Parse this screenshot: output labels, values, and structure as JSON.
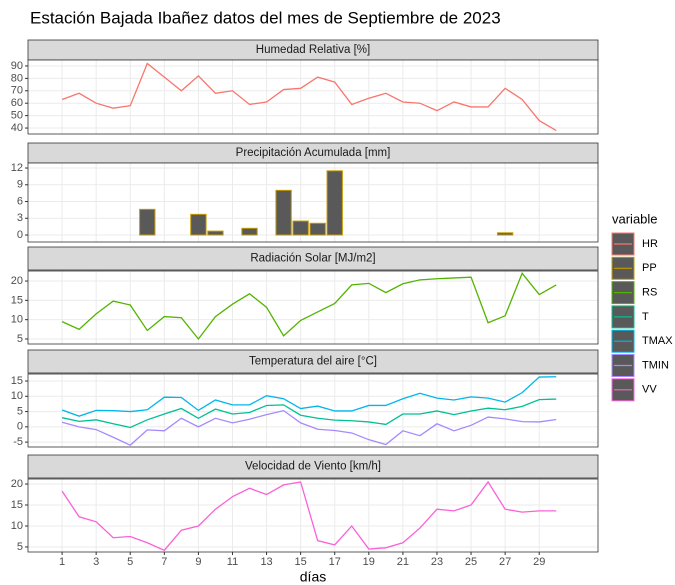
{
  "title": "Estación Bajada Ibañez datos del mes de Septiembre de 2023",
  "legend_title": "variable",
  "chart_data": [
    {
      "type": "line",
      "title": "Humedad Relativa [%]",
      "x": [
        1,
        2,
        3,
        4,
        5,
        6,
        7,
        8,
        9,
        10,
        11,
        12,
        13,
        14,
        15,
        16,
        17,
        18,
        19,
        20,
        21,
        22,
        23,
        24,
        25,
        26,
        27,
        28,
        29,
        30
      ],
      "xlim": [
        -1,
        32.45
      ],
      "xticks": [
        1,
        3,
        5,
        7,
        9,
        11,
        13,
        15,
        17,
        19,
        21,
        23,
        25,
        27,
        29
      ],
      "ylim": [
        35.2,
        94.8
      ],
      "yticks": [
        40,
        50,
        60,
        70,
        80,
        90
      ],
      "series": [
        {
          "name": "HR",
          "color": "#F8766D",
          "values": [
            63,
            68,
            60,
            56,
            58,
            92,
            81,
            70,
            82,
            68,
            70,
            59,
            61,
            71,
            72,
            81,
            77,
            59,
            64,
            68,
            61,
            60,
            54,
            61,
            57,
            57,
            72,
            63,
            46,
            38
          ]
        }
      ]
    },
    {
      "type": "bar",
      "title": "Precipitación Acumulada [mm]",
      "x": [
        1,
        2,
        3,
        4,
        5,
        6,
        7,
        8,
        9,
        10,
        11,
        12,
        13,
        14,
        15,
        16,
        17,
        18,
        19,
        20,
        21,
        22,
        23,
        24,
        25,
        26,
        27,
        28,
        29,
        30
      ],
      "xlim": [
        -1,
        32.45
      ],
      "xticks": [
        1,
        3,
        5,
        7,
        9,
        11,
        13,
        15,
        17,
        19,
        21,
        23,
        25,
        27,
        29
      ],
      "ylim": [
        -1.25,
        12.9
      ],
      "yticks": [
        0,
        3,
        6,
        9,
        12
      ],
      "bar_fill": "#595959",
      "series": [
        {
          "name": "PP",
          "color": "#C49A00",
          "values": [
            0,
            0,
            0,
            0,
            0,
            4.6,
            0,
            0,
            3.7,
            0.7,
            0,
            1.2,
            0,
            8.0,
            2.5,
            2.1,
            11.5,
            0,
            0,
            0,
            0,
            0,
            0,
            0,
            0,
            0,
            0.4,
            0,
            0,
            0
          ]
        }
      ]
    },
    {
      "type": "line",
      "title": "Radiación Solar [MJ/m2]",
      "x": [
        1,
        2,
        3,
        4,
        5,
        6,
        7,
        8,
        9,
        10,
        11,
        12,
        13,
        14,
        15,
        16,
        17,
        18,
        19,
        20,
        21,
        22,
        23,
        24,
        25,
        26,
        27,
        28,
        29,
        30
      ],
      "xlim": [
        -1,
        32.45
      ],
      "xticks": [
        1,
        3,
        5,
        7,
        9,
        11,
        13,
        15,
        17,
        19,
        21,
        23,
        25,
        27,
        29
      ],
      "ylim": [
        3.7,
        22.6
      ],
      "yticks": [
        5,
        10,
        15,
        20
      ],
      "series": [
        {
          "name": "RS",
          "color": "#53B400",
          "values": [
            9.5,
            7.5,
            11.5,
            14.8,
            13.8,
            7.2,
            10.8,
            10.5,
            5,
            10.8,
            14,
            16.7,
            13.2,
            5.8,
            9.8,
            12,
            14.2,
            19,
            19.4,
            17,
            19.3,
            20.3,
            20.6,
            20.8,
            21,
            9.2,
            11,
            22,
            16.5,
            19
          ]
        }
      ]
    },
    {
      "type": "line",
      "title": "Temperatura del aire [°C]",
      "x": [
        1,
        2,
        3,
        4,
        5,
        6,
        7,
        8,
        9,
        10,
        11,
        12,
        13,
        14,
        15,
        16,
        17,
        18,
        19,
        20,
        21,
        22,
        23,
        24,
        25,
        26,
        27,
        28,
        29,
        30
      ],
      "xlim": [
        -1,
        32.45
      ],
      "xticks": [
        1,
        3,
        5,
        7,
        9,
        11,
        13,
        15,
        17,
        19,
        21,
        23,
        25,
        27,
        29
      ],
      "ylim": [
        -6.6,
        17.3
      ],
      "yticks": [
        -5,
        0,
        5,
        10,
        15
      ],
      "series": [
        {
          "name": "T",
          "color": "#00C094",
          "values": [
            3,
            1.8,
            2.3,
            1,
            -0.2,
            2.3,
            4.2,
            6,
            2.8,
            5.8,
            4.2,
            4.7,
            7,
            7.2,
            3.8,
            2.8,
            2.2,
            2,
            1.6,
            0.8,
            4.2,
            4.2,
            5.2,
            4,
            5.2,
            6.1,
            5.6,
            6.7,
            8.9,
            9.1
          ]
        },
        {
          "name": "TMAX",
          "color": "#00B6EB",
          "values": [
            5.5,
            3.5,
            5.4,
            5.3,
            5,
            5.6,
            9.7,
            9.6,
            5.4,
            8.8,
            7.2,
            7.2,
            10.2,
            9.2,
            6,
            6.8,
            5.2,
            5.2,
            7,
            7,
            9.2,
            11,
            9.4,
            8.8,
            9.8,
            9.4,
            8.1,
            11.2,
            16.3,
            16.4
          ]
        },
        {
          "name": "TMIN",
          "color": "#A58AFF",
          "values": [
            1.5,
            0,
            -0.9,
            -3.4,
            -6,
            -1,
            -1.3,
            2.8,
            0,
            2.8,
            1.3,
            2.5,
            4,
            5.3,
            1.3,
            -0.8,
            -1.2,
            -2,
            -4.2,
            -5.8,
            -1.3,
            -2.9,
            1,
            -1.3,
            0.5,
            3.2,
            2.6,
            1.7,
            1.6,
            2.4
          ]
        }
      ]
    },
    {
      "type": "line",
      "title": "Velocidad de Viento [km/h]",
      "x_label": "días",
      "x": [
        1,
        2,
        3,
        4,
        5,
        6,
        7,
        8,
        9,
        10,
        11,
        12,
        13,
        14,
        15,
        16,
        17,
        18,
        19,
        20,
        21,
        22,
        23,
        24,
        25,
        26,
        27,
        28,
        29,
        30
      ],
      "xlim": [
        -1,
        32.45
      ],
      "xticks": [
        1,
        3,
        5,
        7,
        9,
        11,
        13,
        15,
        17,
        19,
        21,
        23,
        25,
        27,
        29
      ],
      "ylim": [
        3.8,
        21.2
      ],
      "yticks": [
        5,
        10,
        15,
        20
      ],
      "series": [
        {
          "name": "VV",
          "color": "#FB61D7",
          "values": [
            18.3,
            12.2,
            11,
            7.2,
            7.5,
            6,
            4.2,
            9,
            10,
            14,
            17,
            19,
            17.5,
            19.8,
            20.5,
            6.5,
            5.5,
            10,
            4.5,
            4.8,
            6,
            9.5,
            14,
            13.6,
            15,
            20.5,
            14,
            13.3,
            13.6,
            13.6
          ]
        }
      ]
    }
  ]
}
